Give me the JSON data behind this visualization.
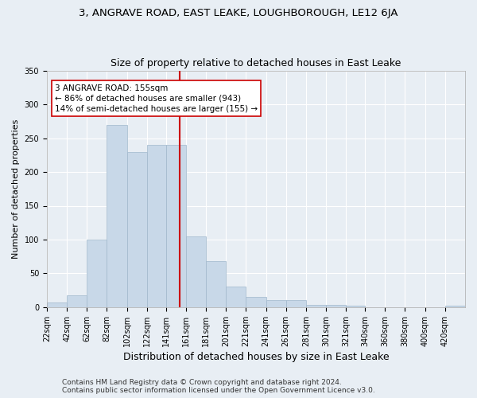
{
  "title": "3, ANGRAVE ROAD, EAST LEAKE, LOUGHBOROUGH, LE12 6JA",
  "subtitle": "Size of property relative to detached houses in East Leake",
  "xlabel": "Distribution of detached houses by size in East Leake",
  "ylabel": "Number of detached properties",
  "bin_labels": [
    "22sqm",
    "42sqm",
    "62sqm",
    "82sqm",
    "102sqm",
    "122sqm",
    "141sqm",
    "161sqm",
    "181sqm",
    "201sqm",
    "221sqm",
    "241sqm",
    "261sqm",
    "281sqm",
    "301sqm",
    "321sqm",
    "340sqm",
    "360sqm",
    "380sqm",
    "400sqm",
    "420sqm"
  ],
  "bin_edges": [
    22,
    42,
    62,
    82,
    102,
    122,
    141,
    161,
    181,
    201,
    221,
    241,
    261,
    281,
    301,
    321,
    340,
    360,
    380,
    400,
    420,
    440
  ],
  "bar_heights": [
    7,
    18,
    100,
    270,
    230,
    240,
    240,
    105,
    68,
    30,
    15,
    10,
    10,
    3,
    3,
    2,
    0,
    0,
    0,
    0,
    2
  ],
  "bar_color": "#c8d8e8",
  "bar_edgecolor": "#a0b8cc",
  "vline_x": 155,
  "vline_color": "#cc0000",
  "annotation_line1": "3 ANGRAVE ROAD: 155sqm",
  "annotation_line2": "← 86% of detached houses are smaller (943)",
  "annotation_line3": "14% of semi-detached houses are larger (155) →",
  "annotation_box_color": "#ffffff",
  "annotation_box_edgecolor": "#cc0000",
  "ylim": [
    0,
    350
  ],
  "yticks": [
    0,
    50,
    100,
    150,
    200,
    250,
    300,
    350
  ],
  "background_color": "#e8eef4",
  "plot_background_color": "#e8eef4",
  "footer_line1": "Contains HM Land Registry data © Crown copyright and database right 2024.",
  "footer_line2": "Contains public sector information licensed under the Open Government Licence v3.0.",
  "title_fontsize": 9.5,
  "subtitle_fontsize": 9,
  "xlabel_fontsize": 9,
  "ylabel_fontsize": 8,
  "tick_fontsize": 7,
  "annotation_fontsize": 7.5,
  "footer_fontsize": 6.5
}
